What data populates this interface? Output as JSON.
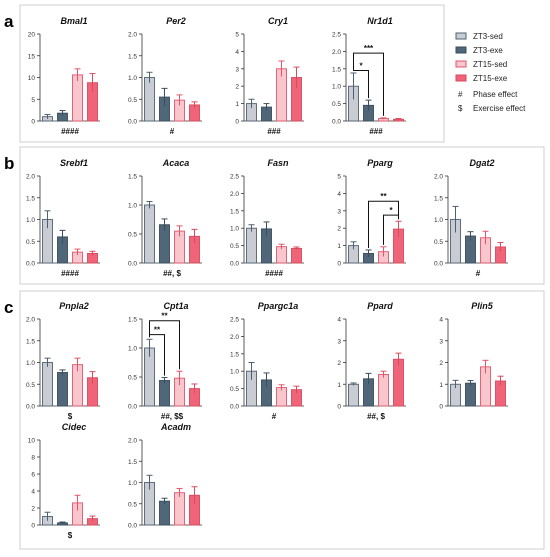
{
  "panels": [
    {
      "label": "a"
    },
    {
      "label": "b"
    },
    {
      "label": "c"
    }
  ],
  "legend": {
    "groups": [
      {
        "name": "ZT3-sed",
        "fill": "#C9CDD3",
        "stroke": "#4E6172"
      },
      {
        "name": "ZT3-exe",
        "fill": "#4F6778",
        "stroke": "#3A4D5C"
      },
      {
        "name": "ZT15-sed",
        "fill": "#F8C6CC",
        "stroke": "#E2556A"
      },
      {
        "name": "ZT15-exe",
        "fill": "#EF6478",
        "stroke": "#D84A5E"
      }
    ],
    "symbols": [
      {
        "symbol": "#",
        "text": "Phase effect"
      },
      {
        "symbol": "$",
        "text": "Exercise effect"
      }
    ]
  },
  "chart_data": [
    {
      "type": "bar",
      "panel": "a",
      "title": "Bmal1",
      "categories": [
        "ZT3-sed",
        "ZT3-exe",
        "ZT15-sed",
        "ZT15-exe"
      ],
      "values": [
        1.0,
        1.8,
        10.6,
        8.8
      ],
      "errors": [
        0.5,
        0.6,
        1.4,
        2.1
      ],
      "ylim": [
        0,
        20
      ],
      "yticks": [
        0,
        5,
        10,
        15,
        20
      ],
      "annotation": "####",
      "brackets": []
    },
    {
      "type": "bar",
      "panel": "a",
      "title": "Per2",
      "categories": [
        "ZT3-sed",
        "ZT3-exe",
        "ZT15-sed",
        "ZT15-exe"
      ],
      "values": [
        1.0,
        0.55,
        0.48,
        0.37
      ],
      "errors": [
        0.12,
        0.2,
        0.12,
        0.07
      ],
      "ylim": [
        0,
        2.0
      ],
      "yticks": [
        0.0,
        0.5,
        1.0,
        1.5,
        2.0
      ],
      "annotation": "#",
      "brackets": []
    },
    {
      "type": "bar",
      "panel": "a",
      "title": "Cry1",
      "categories": [
        "ZT3-sed",
        "ZT3-exe",
        "ZT15-sed",
        "ZT15-exe"
      ],
      "values": [
        1.0,
        0.8,
        3.0,
        2.5
      ],
      "errors": [
        0.25,
        0.2,
        0.45,
        0.6
      ],
      "ylim": [
        0,
        5
      ],
      "yticks": [
        0,
        1,
        2,
        3,
        4,
        5
      ],
      "annotation": "###",
      "brackets": []
    },
    {
      "type": "bar",
      "panel": "a",
      "title": "Nr1d1",
      "categories": [
        "ZT3-sed",
        "ZT3-exe",
        "ZT15-sed",
        "ZT15-exe"
      ],
      "values": [
        1.0,
        0.45,
        0.07,
        0.05
      ],
      "errors": [
        0.38,
        0.15,
        0.02,
        0.02
      ],
      "ylim": [
        0,
        2.5
      ],
      "yticks": [
        0.0,
        0.5,
        1.0,
        1.5,
        2.0,
        2.5
      ],
      "annotation": "###",
      "brackets": [
        {
          "from": 0,
          "to": 2,
          "y": 1.95,
          "label": "***"
        },
        {
          "from": 0,
          "to": 1,
          "y": 1.45,
          "label": "*"
        }
      ]
    },
    {
      "type": "bar",
      "panel": "b",
      "title": "Srebf1",
      "categories": [
        "ZT3-sed",
        "ZT3-exe",
        "ZT15-sed",
        "ZT15-exe"
      ],
      "values": [
        1.0,
        0.6,
        0.25,
        0.22
      ],
      "errors": [
        0.2,
        0.15,
        0.07,
        0.05
      ],
      "ylim": [
        0,
        2.0
      ],
      "yticks": [
        0.0,
        0.5,
        1.0,
        1.5,
        2.0
      ],
      "annotation": "####",
      "brackets": []
    },
    {
      "type": "bar",
      "panel": "b",
      "title": "Acaca",
      "categories": [
        "ZT3-sed",
        "ZT3-exe",
        "ZT15-sed",
        "ZT15-exe"
      ],
      "values": [
        1.0,
        0.66,
        0.55,
        0.46
      ],
      "errors": [
        0.06,
        0.1,
        0.09,
        0.12
      ],
      "ylim": [
        0,
        1.5
      ],
      "yticks": [
        0.0,
        0.5,
        1.0,
        1.5
      ],
      "annotation": "##, $",
      "brackets": []
    },
    {
      "type": "bar",
      "panel": "b",
      "title": "Fasn",
      "categories": [
        "ZT3-sed",
        "ZT3-exe",
        "ZT15-sed",
        "ZT15-exe"
      ],
      "values": [
        1.0,
        0.98,
        0.47,
        0.42
      ],
      "errors": [
        0.1,
        0.2,
        0.07,
        0.04
      ],
      "ylim": [
        0,
        2.5
      ],
      "yticks": [
        0.0,
        0.5,
        1.0,
        1.5,
        2.0,
        2.5
      ],
      "annotation": "####",
      "brackets": []
    },
    {
      "type": "bar",
      "panel": "b",
      "title": "Pparg",
      "categories": [
        "ZT3-sed",
        "ZT3-exe",
        "ZT15-sed",
        "ZT15-exe"
      ],
      "values": [
        1.0,
        0.55,
        0.65,
        1.95
      ],
      "errors": [
        0.22,
        0.2,
        0.28,
        0.45
      ],
      "ylim": [
        0,
        5
      ],
      "yticks": [
        0,
        1,
        2,
        3,
        4,
        5
      ],
      "annotation": "",
      "brackets": [
        {
          "from": 1,
          "to": 3,
          "y": 3.55,
          "label": "**"
        },
        {
          "from": 2,
          "to": 3,
          "y": 2.75,
          "label": "*"
        }
      ]
    },
    {
      "type": "bar",
      "panel": "b",
      "title": "Dgat2",
      "categories": [
        "ZT3-sed",
        "ZT3-exe",
        "ZT15-sed",
        "ZT15-exe"
      ],
      "values": [
        1.0,
        0.62,
        0.58,
        0.37
      ],
      "errors": [
        0.3,
        0.1,
        0.15,
        0.1
      ],
      "ylim": [
        0,
        2.0
      ],
      "yticks": [
        0.0,
        0.5,
        1.0,
        1.5,
        2.0
      ],
      "annotation": "#",
      "brackets": []
    },
    {
      "type": "bar",
      "panel": "c",
      "title": "Pnpla2",
      "categories": [
        "ZT3-sed",
        "ZT3-exe",
        "ZT15-sed",
        "ZT15-exe"
      ],
      "values": [
        1.0,
        0.77,
        0.95,
        0.65
      ],
      "errors": [
        0.1,
        0.06,
        0.15,
        0.14
      ],
      "ylim": [
        0,
        2.0
      ],
      "yticks": [
        0.0,
        0.5,
        1.0,
        1.5,
        2.0
      ],
      "annotation": "$",
      "brackets": []
    },
    {
      "type": "bar",
      "panel": "c",
      "title": "Cpt1a",
      "categories": [
        "ZT3-sed",
        "ZT3-exe",
        "ZT15-sed",
        "ZT15-exe"
      ],
      "values": [
        1.0,
        0.44,
        0.48,
        0.3
      ],
      "errors": [
        0.15,
        0.05,
        0.12,
        0.08
      ],
      "ylim": [
        0,
        1.5
      ],
      "yticks": [
        0.0,
        0.5,
        1.0,
        1.5
      ],
      "annotation": "##, $$",
      "brackets": [
        {
          "from": 0,
          "to": 2,
          "y": 1.47,
          "label": "**"
        },
        {
          "from": 0,
          "to": 1,
          "y": 1.23,
          "label": "**"
        }
      ]
    },
    {
      "type": "bar",
      "panel": "c",
      "title": "Ppargc1a",
      "categories": [
        "ZT3-sed",
        "ZT3-exe",
        "ZT15-sed",
        "ZT15-exe"
      ],
      "values": [
        1.0,
        0.75,
        0.53,
        0.47
      ],
      "errors": [
        0.25,
        0.2,
        0.08,
        0.1
      ],
      "ylim": [
        0,
        2.5
      ],
      "yticks": [
        0.0,
        0.5,
        1.0,
        1.5,
        2.0,
        2.5
      ],
      "annotation": "#",
      "brackets": []
    },
    {
      "type": "bar",
      "panel": "c",
      "title": "Ppard",
      "categories": [
        "ZT3-sed",
        "ZT3-exe",
        "ZT15-sed",
        "ZT15-exe"
      ],
      "values": [
        1.0,
        1.25,
        1.45,
        2.15
      ],
      "errors": [
        0.06,
        0.25,
        0.15,
        0.28
      ],
      "ylim": [
        0,
        4
      ],
      "yticks": [
        0,
        1,
        2,
        3,
        4
      ],
      "annotation": "##, $",
      "brackets": []
    },
    {
      "type": "bar",
      "panel": "c",
      "title": "Plin5",
      "categories": [
        "ZT3-sed",
        "ZT3-exe",
        "ZT15-sed",
        "ZT15-exe"
      ],
      "values": [
        1.0,
        1.05,
        1.8,
        1.15
      ],
      "errors": [
        0.18,
        0.12,
        0.3,
        0.22
      ],
      "ylim": [
        0,
        4
      ],
      "yticks": [
        0,
        1,
        2,
        3,
        4
      ],
      "annotation": "",
      "brackets": []
    },
    {
      "type": "bar",
      "panel": "c",
      "title": "Cidec",
      "categories": [
        "ZT3-sed",
        "ZT3-exe",
        "ZT15-sed",
        "ZT15-exe"
      ],
      "values": [
        1.0,
        0.25,
        2.6,
        0.75
      ],
      "errors": [
        0.5,
        0.1,
        0.9,
        0.3
      ],
      "ylim": [
        0,
        10
      ],
      "yticks": [
        0,
        2,
        4,
        6,
        8,
        10
      ],
      "annotation": "$",
      "brackets": []
    },
    {
      "type": "bar",
      "panel": "c",
      "title": "Acadm",
      "categories": [
        "ZT3-sed",
        "ZT3-exe",
        "ZT15-sed",
        "ZT15-exe"
      ],
      "values": [
        1.0,
        0.56,
        0.76,
        0.7
      ],
      "errors": [
        0.17,
        0.07,
        0.1,
        0.2
      ],
      "ylim": [
        0,
        2.0
      ],
      "yticks": [
        0.0,
        0.5,
        1.0,
        1.5,
        2.0
      ],
      "annotation": "",
      "brackets": []
    }
  ]
}
